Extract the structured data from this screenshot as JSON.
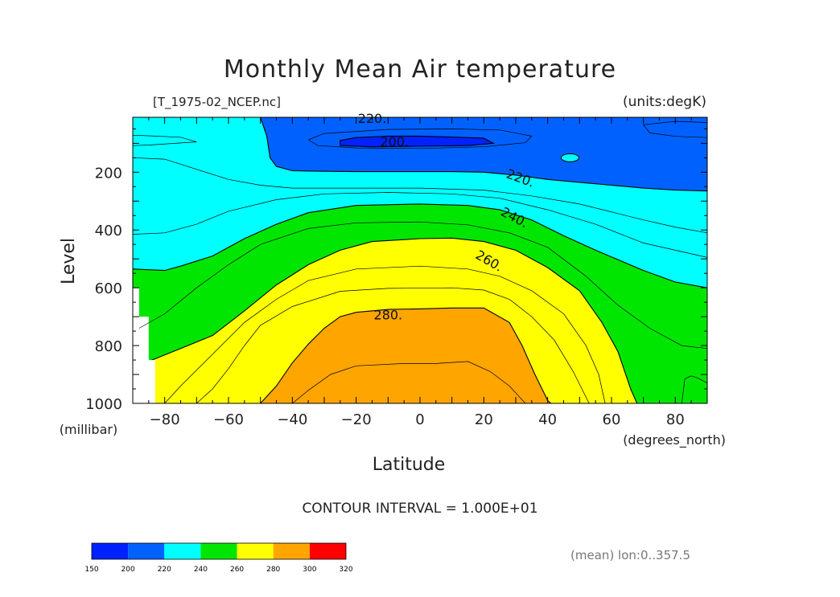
{
  "chart_data": {
    "type": "contour",
    "title": "Monthly Mean Air temperature",
    "file_label": "[T_1975-02_NCEP.nc]",
    "units_label": "(units:degK)",
    "xlabel": "Latitude",
    "x_units": "(degrees_north)",
    "ylabel": "Level",
    "y_units": "(millibar)",
    "xlim": [
      -90,
      90
    ],
    "ylim": [
      1000,
      10
    ],
    "x_ticks": [
      {
        "value": -80,
        "label": "−80"
      },
      {
        "value": -60,
        "label": "−60"
      },
      {
        "value": -40,
        "label": "−40"
      },
      {
        "value": -20,
        "label": "−20"
      },
      {
        "value": 0,
        "label": "0"
      },
      {
        "value": 20,
        "label": "20"
      },
      {
        "value": 40,
        "label": "40"
      },
      {
        "value": 60,
        "label": "60"
      },
      {
        "value": 80,
        "label": "80"
      }
    ],
    "y_ticks": [
      {
        "value": 200,
        "label": "200"
      },
      {
        "value": 400,
        "label": "400"
      },
      {
        "value": 600,
        "label": "600"
      },
      {
        "value": 800,
        "label": "800"
      },
      {
        "value": 1000,
        "label": "1000"
      }
    ],
    "contour_interval_label": "CONTOUR INTERVAL = 1.000E+01",
    "contour_labels": [
      {
        "text": "200.",
        "lat": -8,
        "lev": 110,
        "angle": 0
      },
      {
        "text": "220.",
        "lat": -15,
        "lev": 30,
        "angle": 0
      },
      {
        "text": "220.",
        "lat": 31,
        "lev": 235,
        "angle": 20
      },
      {
        "text": "240.",
        "lat": 29,
        "lev": 370,
        "angle": 28
      },
      {
        "text": "260.",
        "lat": 21,
        "lev": 520,
        "angle": 30
      },
      {
        "text": "280.",
        "lat": -10,
        "lev": 710,
        "angle": 0
      }
    ],
    "filled_regions": [
      {
        "level": "<200",
        "color": "#0022ff",
        "points": [
          [
            -25,
            90
          ],
          [
            -20,
            80
          ],
          [
            -10,
            75
          ],
          [
            0,
            75
          ],
          [
            10,
            78
          ],
          [
            20,
            82
          ],
          [
            23,
            100
          ],
          [
            15,
            108
          ],
          [
            0,
            110
          ],
          [
            -15,
            112
          ],
          [
            -25,
            108
          ]
        ]
      },
      {
        "level": "200-220",
        "color": "#0061ff",
        "shape": "upper",
        "bottom_lev": 10,
        "points": [
          [
            -90,
            10
          ],
          [
            -50,
            10
          ],
          [
            -48,
            75
          ],
          [
            -47,
            150
          ],
          [
            -45,
            180
          ],
          [
            -40,
            195
          ],
          [
            -30,
            197
          ],
          [
            -20,
            198
          ],
          [
            -10,
            198
          ],
          [
            0,
            198
          ],
          [
            10,
            198
          ],
          [
            20,
            200
          ],
          [
            30,
            210
          ],
          [
            40,
            225
          ],
          [
            50,
            235
          ],
          [
            60,
            245
          ],
          [
            70,
            255
          ],
          [
            80,
            262
          ],
          [
            90,
            265
          ],
          [
            90,
            10
          ]
        ]
      },
      {
        "level": "240-260",
        "color": "#00e600",
        "shape": "lower_side",
        "points": [
          [
            -90,
            1000
          ],
          [
            -90,
            535
          ],
          [
            -80,
            540
          ],
          [
            -75,
            525
          ],
          [
            -65,
            490
          ],
          [
            -55,
            430
          ],
          [
            -45,
            380
          ],
          [
            -35,
            340
          ],
          [
            -20,
            315
          ],
          [
            0,
            310
          ],
          [
            15,
            315
          ],
          [
            25,
            330
          ],
          [
            35,
            365
          ],
          [
            45,
            420
          ],
          [
            55,
            470
          ],
          [
            70,
            540
          ],
          [
            80,
            580
          ],
          [
            90,
            600
          ],
          [
            90,
            1000
          ]
        ]
      },
      {
        "level": "260-280",
        "color": "#ffff00",
        "points": [
          [
            -84,
            1000
          ],
          [
            -84,
            850
          ],
          [
            -75,
            810
          ],
          [
            -65,
            765
          ],
          [
            -55,
            680
          ],
          [
            -45,
            590
          ],
          [
            -35,
            520
          ],
          [
            -25,
            470
          ],
          [
            -15,
            440
          ],
          [
            0,
            430
          ],
          [
            10,
            428
          ],
          [
            20,
            440
          ],
          [
            30,
            470
          ],
          [
            40,
            530
          ],
          [
            50,
            610
          ],
          [
            57,
            720
          ],
          [
            62,
            820
          ],
          [
            66,
            950
          ],
          [
            68,
            1000
          ]
        ]
      },
      {
        "level": "280-300",
        "color": "#ffa500",
        "points": [
          [
            -50,
            1000
          ],
          [
            -45,
            940
          ],
          [
            -40,
            860
          ],
          [
            -35,
            795
          ],
          [
            -30,
            740
          ],
          [
            -25,
            700
          ],
          [
            -20,
            685
          ],
          [
            -10,
            675
          ],
          [
            0,
            673
          ],
          [
            10,
            670
          ],
          [
            20,
            670
          ],
          [
            28,
            720
          ],
          [
            32,
            800
          ],
          [
            36,
            900
          ],
          [
            40,
            990
          ],
          [
            41,
            1000
          ]
        ]
      }
    ],
    "thin_contours": [
      {
        "level": 205,
        "points": [
          [
            -35,
            88
          ],
          [
            -30,
            66
          ],
          [
            -10,
            52
          ],
          [
            10,
            50
          ],
          [
            25,
            54
          ],
          [
            35,
            75
          ],
          [
            33,
            98
          ],
          [
            20,
            112
          ],
          [
            0,
            118
          ],
          [
            -20,
            116
          ],
          [
            -32,
            108
          ],
          [
            -35,
            88
          ]
        ]
      },
      {
        "level": 210,
        "points": [
          [
            -90,
            72
          ],
          [
            -85,
            74
          ],
          [
            -75,
            79
          ],
          [
            -70,
            95
          ],
          [
            -85,
            106
          ],
          [
            -90,
            108
          ]
        ]
      },
      {
        "level": 215,
        "points": [
          [
            90,
            28
          ],
          [
            80,
            24
          ],
          [
            70,
            36
          ],
          [
            72,
            64
          ],
          [
            80,
            76
          ],
          [
            90,
            80
          ]
        ]
      },
      {
        "level": 225,
        "points": [
          [
            -90,
            150
          ],
          [
            -80,
            155
          ],
          [
            -70,
            190
          ],
          [
            -60,
            225
          ],
          [
            -50,
            245
          ],
          [
            -40,
            255
          ],
          [
            -20,
            255
          ],
          [
            0,
            255
          ],
          [
            20,
            262
          ],
          [
            35,
            282
          ],
          [
            50,
            310
          ],
          [
            70,
            365
          ],
          [
            80,
            390
          ],
          [
            90,
            410
          ]
        ]
      },
      {
        "level": 235,
        "points": [
          [
            -90,
            415
          ],
          [
            -80,
            410
          ],
          [
            -70,
            380
          ],
          [
            -60,
            335
          ],
          [
            -45,
            295
          ],
          [
            -30,
            275
          ],
          [
            -10,
            270
          ],
          [
            10,
            275
          ],
          [
            25,
            290
          ],
          [
            40,
            330
          ],
          [
            55,
            380
          ],
          [
            70,
            445
          ],
          [
            90,
            495
          ]
        ]
      },
      {
        "level": 245,
        "points": [
          [
            -88,
            740
          ],
          [
            -80,
            690
          ],
          [
            -70,
            600
          ],
          [
            -60,
            520
          ],
          [
            -50,
            450
          ],
          [
            -35,
            395
          ],
          [
            -20,
            375
          ],
          [
            0,
            372
          ],
          [
            15,
            382
          ],
          [
            28,
            410
          ],
          [
            40,
            460
          ],
          [
            52,
            560
          ],
          [
            62,
            660
          ],
          [
            72,
            740
          ],
          [
            82,
            800
          ],
          [
            90,
            810
          ]
        ]
      },
      {
        "level": 265,
        "points": [
          [
            -80,
            1000
          ],
          [
            -75,
            940
          ],
          [
            -65,
            830
          ],
          [
            -55,
            720
          ],
          [
            -45,
            640
          ],
          [
            -35,
            575
          ],
          [
            -20,
            535
          ],
          [
            0,
            525
          ],
          [
            15,
            535
          ],
          [
            25,
            560
          ],
          [
            35,
            610
          ],
          [
            45,
            690
          ],
          [
            52,
            800
          ],
          [
            56,
            900
          ],
          [
            58,
            1000
          ]
        ]
      },
      {
        "level": 275,
        "points": [
          [
            -70,
            1000
          ],
          [
            -65,
            950
          ],
          [
            -60,
            880
          ],
          [
            -55,
            800
          ],
          [
            -50,
            730
          ],
          [
            -40,
            665
          ],
          [
            -25,
            612
          ],
          [
            -10,
            602
          ],
          [
            10,
            600
          ],
          [
            20,
            608
          ],
          [
            28,
            640
          ],
          [
            35,
            700
          ],
          [
            42,
            780
          ],
          [
            48,
            890
          ],
          [
            53,
            1000
          ]
        ]
      },
      {
        "level": 285,
        "points": [
          [
            -40,
            1000
          ],
          [
            -35,
            955
          ],
          [
            -28,
            900
          ],
          [
            -20,
            870
          ],
          [
            -5,
            862
          ],
          [
            5,
            862
          ],
          [
            15,
            855
          ],
          [
            22,
            890
          ],
          [
            28,
            940
          ],
          [
            33,
            1000
          ]
        ]
      },
      {
        "level": 255,
        "points": [
          [
            82,
            1000
          ],
          [
            83,
            915
          ],
          [
            85,
            905
          ],
          [
            87,
            912
          ],
          [
            90,
            930
          ]
        ]
      }
    ],
    "colorbar": {
      "colors": [
        "#0022ff",
        "#0061ff",
        "#00ffff",
        "#00e600",
        "#ffff00",
        "#ffa500",
        "#ff0000"
      ],
      "tick_labels": [
        "150",
        "200",
        "220",
        "240",
        "260",
        "280",
        "300",
        "320"
      ]
    },
    "footnote": "(mean) lon:0..357.5"
  }
}
